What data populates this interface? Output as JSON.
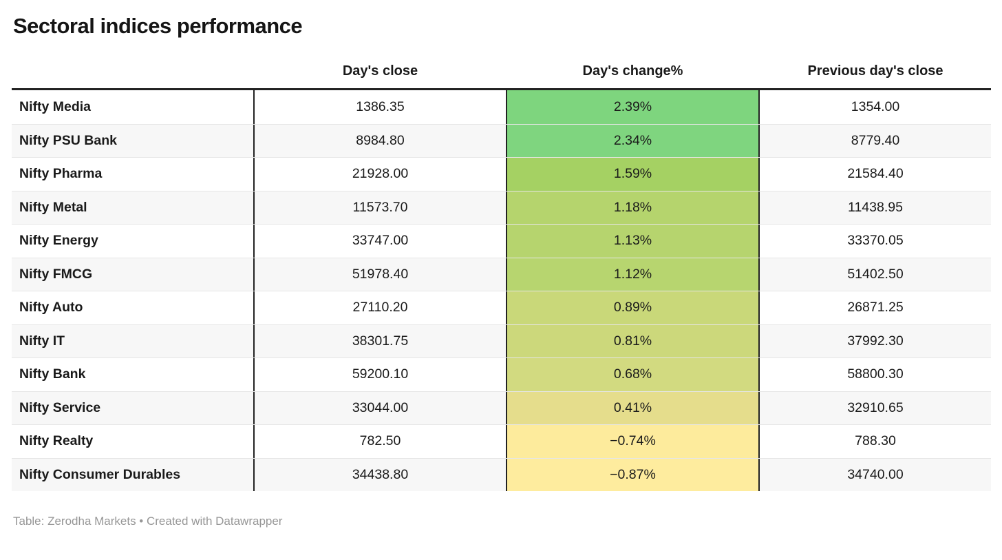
{
  "title": "Sectoral indices performance",
  "footer": "Table: Zerodha Markets • Created with Datawrapper",
  "header": {
    "index_col": "",
    "close": "Day's close",
    "change": "Day's change%",
    "prev": "Previous day's close"
  },
  "colors": {
    "border_dark": "#222222",
    "row_stripe": "#f7f7f7",
    "row_separator": "#e6e6e6",
    "footer_text": "#969696",
    "change_scale_max_green": "#7ed57e",
    "change_scale_min_yellow": "#feec9e"
  },
  "chart_data": {
    "type": "table",
    "title": "Sectoral indices performance",
    "columns": [
      "",
      "Day's close",
      "Day's change%",
      "Previous day's close"
    ],
    "legend_position": "none",
    "color_scale": "green (highest positive change) to pale yellow (negative change) applied to Day's change% column",
    "rows": [
      {
        "name": "Nifty Media",
        "close": "1386.35",
        "change": "2.39%",
        "change_value": 2.39,
        "prev_close": "1354.00",
        "color": "#7ed57e"
      },
      {
        "name": "Nifty PSU Bank",
        "close": "8984.80",
        "change": "2.34%",
        "change_value": 2.34,
        "prev_close": "8779.40",
        "color": "#7fd57f"
      },
      {
        "name": "Nifty Pharma",
        "close": "21928.00",
        "change": "1.59%",
        "change_value": 1.59,
        "prev_close": "21584.40",
        "color": "#a5d163"
      },
      {
        "name": "Nifty Metal",
        "close": "11573.70",
        "change": "1.18%",
        "change_value": 1.18,
        "prev_close": "11438.95",
        "color": "#b5d46d"
      },
      {
        "name": "Nifty Energy",
        "close": "33747.00",
        "change": "1.13%",
        "change_value": 1.13,
        "prev_close": "33370.05",
        "color": "#b6d46e"
      },
      {
        "name": "Nifty FMCG",
        "close": "51978.40",
        "change": "1.12%",
        "change_value": 1.12,
        "prev_close": "51402.50",
        "color": "#b7d56f"
      },
      {
        "name": "Nifty Auto",
        "close": "27110.20",
        "change": "0.89%",
        "change_value": 0.89,
        "prev_close": "26871.25",
        "color": "#c9d879"
      },
      {
        "name": "Nifty IT",
        "close": "38301.75",
        "change": "0.81%",
        "change_value": 0.81,
        "prev_close": "37992.30",
        "color": "#ccd87b"
      },
      {
        "name": "Nifty Bank",
        "close": "59200.10",
        "change": "0.68%",
        "change_value": 0.68,
        "prev_close": "58800.30",
        "color": "#d2da80"
      },
      {
        "name": "Nifty Service",
        "close": "33044.00",
        "change": "0.41%",
        "change_value": 0.41,
        "prev_close": "32910.65",
        "color": "#e5dd8c"
      },
      {
        "name": "Nifty Realty",
        "close": "782.50",
        "change": "−0.74%",
        "change_value": -0.74,
        "prev_close": "788.30",
        "color": "#fdeb9c"
      },
      {
        "name": "Nifty Consumer Durables",
        "close": "34438.80",
        "change": "−0.87%",
        "change_value": -0.87,
        "prev_close": "34740.00",
        "color": "#feec9e"
      }
    ]
  }
}
